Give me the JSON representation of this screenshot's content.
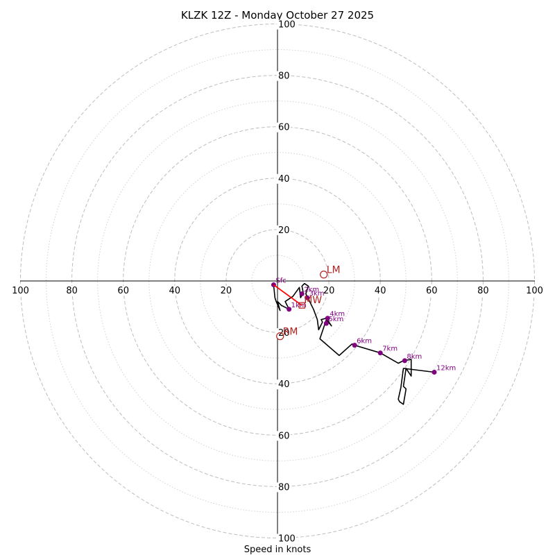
{
  "chart_data": {
    "type": "hodograph",
    "title": "KLZK 12Z - Monday October 27 2025",
    "xlabel": "Speed in knots",
    "units": "knots",
    "range": 100,
    "major_rings": [
      20,
      40,
      60,
      80,
      100
    ],
    "minor_rings": [
      10,
      30,
      50,
      70,
      90
    ],
    "tick_labels": {
      "top": [
        "20",
        "40",
        "60",
        "80",
        "100"
      ],
      "bottom": [
        "20",
        "40",
        "60",
        "80",
        "100"
      ],
      "left": [
        "100",
        "80",
        "60",
        "40",
        "20"
      ],
      "right": [
        "20",
        "40",
        "60",
        "80",
        "100"
      ]
    },
    "profile": [
      [
        -1.5,
        -1.5
      ],
      [
        -1,
        -6.5
      ],
      [
        -0.5,
        -8
      ],
      [
        1,
        -11.5
      ],
      [
        0,
        -8
      ],
      [
        1.5,
        -9.5
      ],
      [
        4.5,
        -11
      ],
      [
        3,
        -8
      ],
      [
        6,
        -6
      ],
      [
        8.5,
        -2.5
      ],
      [
        9,
        -6.5
      ],
      [
        10,
        -4.5
      ],
      [
        9.5,
        -2
      ],
      [
        10.5,
        -1
      ],
      [
        12,
        -2
      ],
      [
        11,
        -5
      ],
      [
        14,
        -11
      ],
      [
        15.5,
        -15
      ],
      [
        16,
        -19
      ],
      [
        17.5,
        -16
      ],
      [
        17,
        -15
      ],
      [
        19,
        -14.5
      ],
      [
        21,
        -17.5
      ],
      [
        19,
        -15
      ],
      [
        18,
        -18
      ],
      [
        16.5,
        -22.5
      ],
      [
        24,
        -29
      ],
      [
        29,
        -24.5
      ],
      [
        30,
        -25
      ],
      [
        40,
        -28
      ],
      [
        47,
        -32
      ],
      [
        49,
        -31
      ],
      [
        52,
        -30.5
      ],
      [
        52,
        -37
      ],
      [
        50,
        -34
      ],
      [
        49,
        -41
      ],
      [
        50,
        -42
      ],
      [
        49,
        -48
      ],
      [
        47.5,
        -47
      ],
      [
        47,
        -46
      ],
      [
        48,
        -41.5
      ],
      [
        49,
        -34
      ],
      [
        61,
        -35.5
      ]
    ],
    "height_markers": [
      {
        "label": "Sfc",
        "u": -1.5,
        "v": -1.5
      },
      {
        "label": "1km",
        "u": 4.5,
        "v": -11
      },
      {
        "label": "2km",
        "u": 9.5,
        "v": -5
      },
      {
        "label": "3km",
        "u": 11.5,
        "v": -6.5
      },
      {
        "label": "4km",
        "u": 19.5,
        "v": -14.5
      },
      {
        "label": "5km",
        "u": 19,
        "v": -16.5
      },
      {
        "label": "6km",
        "u": 30,
        "v": -25
      },
      {
        "label": "7km",
        "u": 40,
        "v": -28
      },
      {
        "label": "8km",
        "u": 49.5,
        "v": -31
      },
      {
        "label": "12km",
        "u": 61,
        "v": -35.5
      }
    ],
    "motion": {
      "LM": {
        "label": "LM",
        "u": 18,
        "v": 2.5
      },
      "RM": {
        "label": "RM",
        "u": 1,
        "v": -21.5
      },
      "MW": {
        "label": "MW",
        "u": 9.5,
        "v": -9.5
      },
      "shear_vector": {
        "from_u": -1.5,
        "from_v": -1.5,
        "to_u": 9.5,
        "to_v": -9.5
      }
    },
    "colors": {
      "profile": "#000000",
      "height_marker": "#800080",
      "motion_marker": "#b22222",
      "shear_vector": "#ff0000"
    }
  }
}
